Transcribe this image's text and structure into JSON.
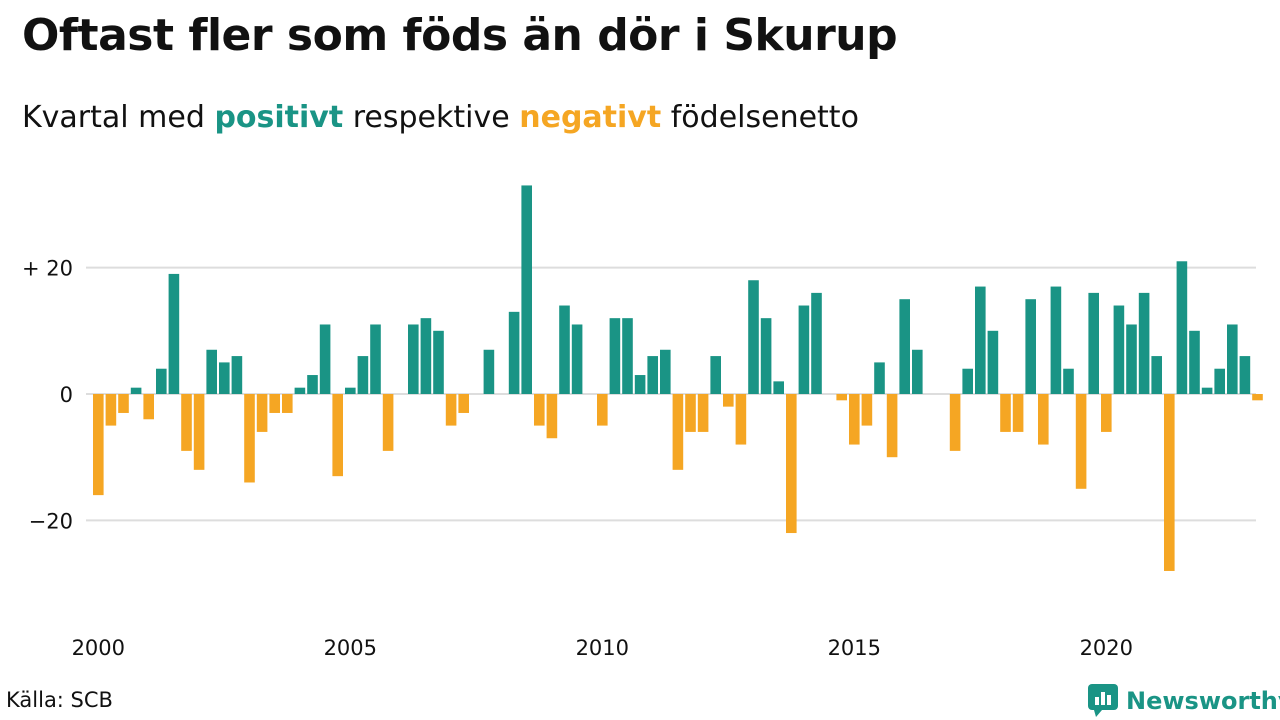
{
  "header": {
    "title": "Oftast fler som föds än dör i Skurup",
    "subtitle_pre": "Kvartal med",
    "subtitle_positive": "positivt",
    "subtitle_mid": "respektive",
    "subtitle_negative": "negativt",
    "subtitle_post": "födelsenetto"
  },
  "colors": {
    "positive": "#1a9485",
    "negative": "#f5a623",
    "grid": "#dddddd"
  },
  "footer": {
    "source": "Källa: SCB",
    "brand": "Newsworthy",
    "brand_icon": "newsworthy-logo-icon"
  },
  "chart_data": {
    "type": "bar",
    "x_start": "2000 Q1",
    "x_ticks": [
      "2000",
      "2005",
      "2010",
      "2015",
      "2020"
    ],
    "y_ticks": [
      {
        "value": 20,
        "label": "+ 20"
      },
      {
        "value": 0,
        "label": "0"
      },
      {
        "value": -20,
        "label": "−20"
      }
    ],
    "ylim": [
      -35,
      33
    ],
    "grid": true,
    "values": [
      -16,
      -5,
      -3,
      1,
      -4,
      4,
      19,
      -9,
      -12,
      7,
      5,
      6,
      -14,
      -6,
      -3,
      -3,
      1,
      3,
      11,
      -13,
      1,
      6,
      11,
      -9,
      0,
      11,
      12,
      10,
      -5,
      -3,
      0,
      7,
      0,
      13,
      33,
      -5,
      -7,
      14,
      11,
      0,
      -5,
      12,
      12,
      3,
      6,
      7,
      -12,
      -6,
      -6,
      6,
      -2,
      -8,
      18,
      12,
      2,
      -22,
      14,
      16,
      0,
      -1,
      -8,
      -5,
      5,
      -10,
      15,
      7,
      0,
      0,
      -9,
      4,
      17,
      10,
      -6,
      -6,
      15,
      -8,
      17,
      4,
      -15,
      16,
      -6,
      14,
      11,
      16,
      6,
      -28,
      21,
      10,
      1,
      4,
      11,
      6,
      -1
    ]
  }
}
